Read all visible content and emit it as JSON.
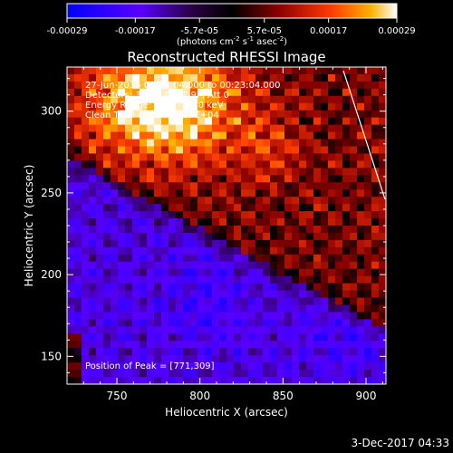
{
  "colorbar": {
    "tick_labels": [
      "-0.00029",
      "-0.00017",
      "-5.7e-05",
      "5.7e-05",
      "0.00017",
      "0.00029"
    ],
    "tick_values": [
      -0.00029,
      -0.00017,
      -5.7e-05,
      5.7e-05,
      0.00017,
      0.00029
    ],
    "range": [
      -0.00029,
      0.00029
    ],
    "units_main": "(photons cm",
    "units_exp1": "-2",
    "units_mid": " s",
    "units_exp2": "-1",
    "units_end": " asec",
    "units_exp3": "-2",
    "units_close": ")",
    "colors": [
      "#0000ff",
      "#5500ff",
      "#2a0035",
      "#000000",
      "#7a0000",
      "#e03000",
      "#ffa000",
      "#ffffff"
    ]
  },
  "chart_data": {
    "type": "heatmap",
    "title": "Reconstructed RHESSI Image",
    "xlabel": "Heliocentric X (arcsec)",
    "ylabel": "Heliocentric Y (arcsec)",
    "xlim": [
      720,
      912
    ],
    "ylim": [
      133,
      327
    ],
    "x_ticks": [
      750,
      800,
      850,
      900
    ],
    "y_ticks": [
      150,
      200,
      250,
      300
    ],
    "annotations": {
      "time": "27-Jun-2015 00:13:04.000 to 00:23:04.000",
      "detectors": "Detectors: 3F 6F 7F 8F 9F, Att 0",
      "energy": "Energy Range: 25.0 - 50.0 keV",
      "clean": "Clean    Total counts: 1.27E+04",
      "peak": "Position of Peak = [771,309]"
    },
    "peak_position": [
      771,
      309
    ],
    "total_counts": 12700
  },
  "footer": {
    "date": "3-Dec-2017 04:33"
  }
}
